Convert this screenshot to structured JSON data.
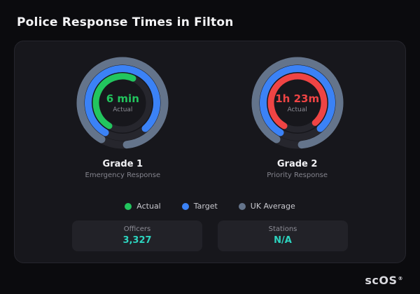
{
  "page": {
    "title": "Police Response Times in Filton"
  },
  "logo": {
    "text": "scOS",
    "reg_mark": "®"
  },
  "colors": {
    "actual_green": "#22c55e",
    "actual_red": "#ef4444",
    "target_blue": "#3b82f6",
    "uk_average_gray": "#64748b",
    "stat_teal": "#2dd4bf",
    "track": "#26262d"
  },
  "chart_data": {
    "type": "gauge",
    "title": "Police Response Times in Filton",
    "legend": [
      {
        "label": "Actual",
        "color": "#22c55e"
      },
      {
        "label": "Target",
        "color": "#3b82f6"
      },
      {
        "label": "UK Average",
        "color": "#64748b"
      }
    ],
    "gauges": [
      {
        "name": "Grade 1",
        "subtitle": "Emergency Response",
        "value_label": "6 min",
        "value_color": "#22c55e",
        "center_caption": "Actual",
        "rings": [
          {
            "name": "UK Average",
            "color": "#64748b",
            "fraction": 0.9
          },
          {
            "name": "Target",
            "color": "#3b82f6",
            "fraction": 0.8
          },
          {
            "name": "Actual",
            "color": "#22c55e",
            "fraction": 0.48
          }
        ]
      },
      {
        "name": "Grade 2",
        "subtitle": "Priority Response",
        "value_label": "1h 23m",
        "value_color": "#ef4444",
        "center_caption": "Actual",
        "rings": [
          {
            "name": "UK Average",
            "color": "#64748b",
            "fraction": 0.9
          },
          {
            "name": "Target",
            "color": "#3b82f6",
            "fraction": 0.8
          },
          {
            "name": "Actual",
            "color": "#ef4444",
            "fraction": 0.8
          }
        ]
      }
    ],
    "stats": [
      {
        "label": "Officers",
        "value": "3,327",
        "value_color": "#2dd4bf"
      },
      {
        "label": "Stations",
        "value": "N/A",
        "value_color": "#2dd4bf"
      }
    ]
  }
}
